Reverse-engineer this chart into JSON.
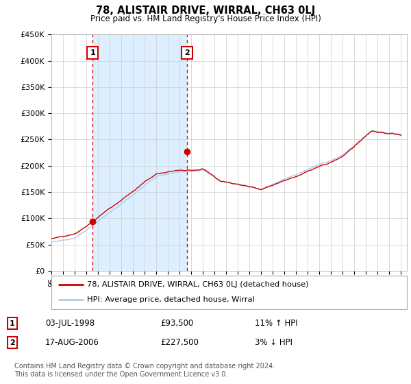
{
  "title": "78, ALISTAIR DRIVE, WIRRAL, CH63 0LJ",
  "subtitle": "Price paid vs. HM Land Registry's House Price Index (HPI)",
  "ylabel_ticks": [
    "£0",
    "£50K",
    "£100K",
    "£150K",
    "£200K",
    "£250K",
    "£300K",
    "£350K",
    "£400K",
    "£450K"
  ],
  "ylim": [
    0,
    450000
  ],
  "ytick_vals": [
    0,
    50000,
    100000,
    150000,
    200000,
    250000,
    300000,
    350000,
    400000,
    450000
  ],
  "sale1_year": 1998.53,
  "sale1_price": 93500,
  "sale2_year": 2006.63,
  "sale2_price": 227500,
  "sale1_date": "03-JUL-1998",
  "sale1_amount": "£93,500",
  "sale1_hpi": "11% ↑ HPI",
  "sale2_date": "17-AUG-2006",
  "sale2_amount": "£227,500",
  "sale2_hpi": "3% ↓ HPI",
  "red_color": "#cc0000",
  "blue_color": "#aaccee",
  "shade_color": "#ddeeff",
  "legend_line1": "78, ALISTAIR DRIVE, WIRRAL, CH63 0LJ (detached house)",
  "legend_line2": "HPI: Average price, detached house, Wirral",
  "footer": "Contains HM Land Registry data © Crown copyright and database right 2024.\nThis data is licensed under the Open Government Licence v3.0.",
  "background_color": "#ffffff",
  "grid_color": "#cccccc",
  "xlim_start": 1995.0,
  "xlim_end": 2025.5
}
